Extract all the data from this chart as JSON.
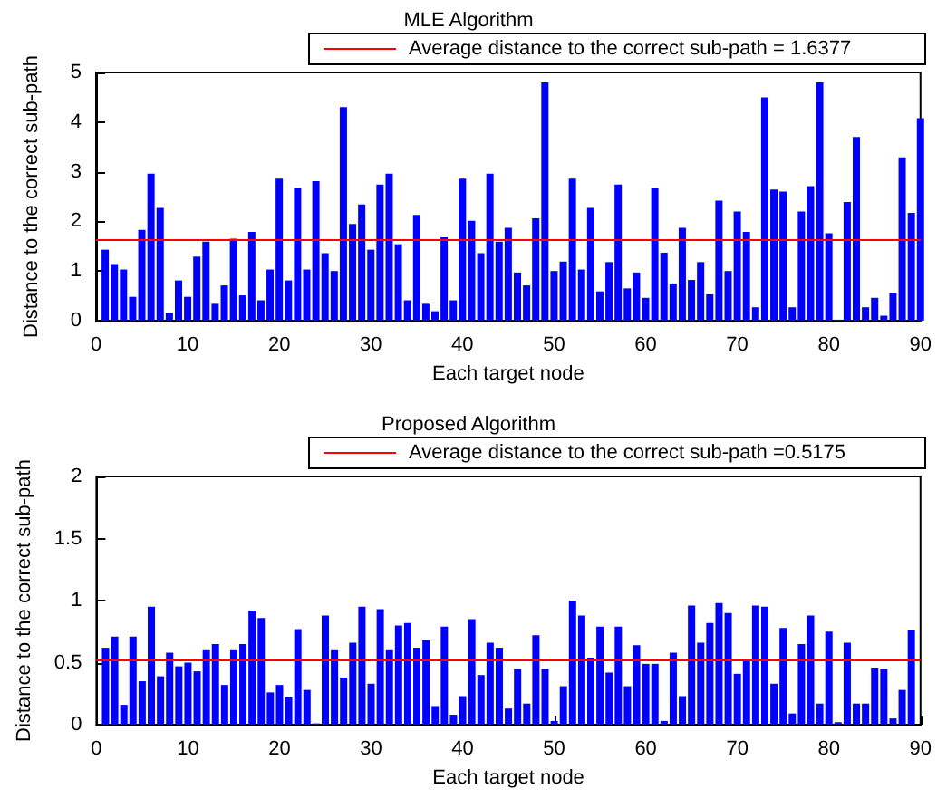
{
  "chart_data": [
    {
      "type": "bar",
      "title": "MLE Algorithm",
      "xlabel": "Each target node",
      "ylabel": "Distance to the correct sub-path",
      "x": [
        1,
        2,
        3,
        4,
        5,
        6,
        7,
        8,
        9,
        10,
        11,
        12,
        13,
        14,
        15,
        16,
        17,
        18,
        19,
        20,
        21,
        22,
        23,
        24,
        25,
        26,
        27,
        28,
        29,
        30,
        31,
        32,
        33,
        34,
        35,
        36,
        37,
        38,
        39,
        40,
        41,
        42,
        43,
        44,
        45,
        46,
        47,
        48,
        49,
        50,
        51,
        52,
        53,
        54,
        55,
        56,
        57,
        58,
        59,
        60,
        61,
        62,
        63,
        64,
        65,
        66,
        67,
        68,
        69,
        70,
        71,
        72,
        73,
        74,
        75,
        76,
        77,
        78,
        79,
        80,
        81,
        82,
        83,
        84,
        85,
        86,
        87,
        88,
        89,
        90
      ],
      "values": [
        1.43,
        1.14,
        1.03,
        0.48,
        1.83,
        2.96,
        2.27,
        0.16,
        0.81,
        0.48,
        1.29,
        1.59,
        0.34,
        0.71,
        1.65,
        0.51,
        1.79,
        0.41,
        1.03,
        2.86,
        0.81,
        2.67,
        1.03,
        2.81,
        1.36,
        1.0,
        4.3,
        1.95,
        2.34,
        1.43,
        2.74,
        2.96,
        1.54,
        0.41,
        2.13,
        0.34,
        0.19,
        1.68,
        0.41,
        2.86,
        2.01,
        1.36,
        2.96,
        1.59,
        1.87,
        0.97,
        0.71,
        2.06,
        4.8,
        1.0,
        1.19,
        2.86,
        1.03,
        2.27,
        0.59,
        1.18,
        2.74,
        0.65,
        0.97,
        0.46,
        2.67,
        1.37,
        0.75,
        1.87,
        0.82,
        1.18,
        0.53,
        2.42,
        1.0,
        2.2,
        1.79,
        0.27,
        4.5,
        2.64,
        2.6,
        0.27,
        2.2,
        2.71,
        4.8,
        1.76,
        0.02,
        2.39,
        3.7,
        0.27,
        0.46,
        0.1,
        0.56,
        3.29,
        2.17,
        4.08
      ],
      "color": "#0000ff",
      "xlim": [
        0,
        90
      ],
      "xticks": [
        0,
        10,
        20,
        30,
        40,
        50,
        60,
        70,
        80,
        90
      ],
      "ylim": [
        0,
        5
      ],
      "yticks": [
        0,
        1,
        2,
        3,
        4,
        5
      ],
      "grid": false,
      "ref_lines": [
        {
          "axis": "y",
          "value": 1.6377,
          "label": "Average distance to the correct sub-path = 1.6377",
          "color": "#ff0000"
        }
      ]
    },
    {
      "type": "bar",
      "title": "Proposed Algorithm",
      "xlabel": "Each target node",
      "ylabel": "Distance to the correct sub-path",
      "x": [
        1,
        2,
        3,
        4,
        5,
        6,
        7,
        8,
        9,
        10,
        11,
        12,
        13,
        14,
        15,
        16,
        17,
        18,
        19,
        20,
        21,
        22,
        23,
        24,
        25,
        26,
        27,
        28,
        29,
        30,
        31,
        32,
        33,
        34,
        35,
        36,
        37,
        38,
        39,
        40,
        41,
        42,
        43,
        44,
        45,
        46,
        47,
        48,
        49,
        50,
        51,
        52,
        53,
        54,
        55,
        56,
        57,
        58,
        59,
        60,
        61,
        62,
        63,
        64,
        65,
        66,
        67,
        68,
        69,
        70,
        71,
        72,
        73,
        74,
        75,
        76,
        77,
        78,
        79,
        80,
        81,
        82,
        83,
        84,
        85,
        86,
        87,
        88,
        89
      ],
      "values": [
        0.62,
        0.71,
        0.16,
        0.71,
        0.35,
        0.95,
        0.39,
        0.58,
        0.47,
        0.5,
        0.43,
        0.6,
        0.65,
        0.32,
        0.6,
        0.65,
        0.92,
        0.86,
        0.26,
        0.32,
        0.22,
        0.77,
        0.28,
        0.01,
        0.88,
        0.6,
        0.38,
        0.66,
        0.95,
        0.33,
        0.93,
        0.6,
        0.8,
        0.82,
        0.62,
        0.68,
        0.15,
        0.79,
        0.08,
        0.23,
        0.85,
        0.4,
        0.66,
        0.62,
        0.13,
        0.45,
        0.17,
        0.72,
        0.45,
        0.03,
        0.31,
        1.0,
        0.88,
        0.54,
        0.79,
        0.42,
        0.79,
        0.31,
        0.64,
        0.49,
        0.49,
        0.03,
        0.58,
        0.23,
        0.96,
        0.66,
        0.82,
        0.98,
        0.9,
        0.41,
        0.52,
        0.96,
        0.95,
        0.33,
        0.78,
        0.09,
        0.65,
        0.88,
        0.17,
        0.75,
        0.02,
        0.66,
        0.17,
        0.17,
        0.46,
        0.45,
        0.05,
        0.28,
        0.76
      ],
      "color": "#0000ff",
      "xlim": [
        0,
        90
      ],
      "xticks": [
        0,
        10,
        20,
        30,
        40,
        50,
        60,
        70,
        80,
        90
      ],
      "ylim": [
        0,
        2
      ],
      "yticks": [
        0,
        0.5,
        1,
        1.5,
        2
      ],
      "grid": false,
      "ref_lines": [
        {
          "axis": "y",
          "value": 0.5175,
          "label": "Average distance to the correct sub-path =0.5175",
          "color": "#ff0000"
        }
      ]
    }
  ]
}
